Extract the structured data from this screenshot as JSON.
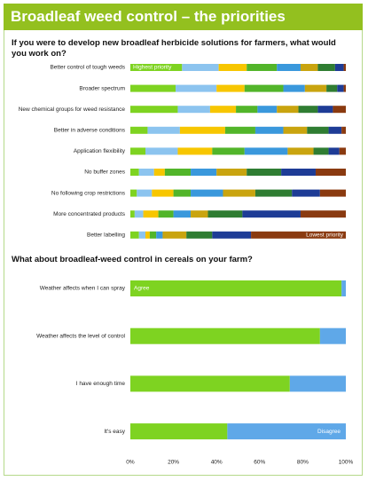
{
  "header": {
    "title": "Broadleaf weed control – the priorities"
  },
  "chart_data": [
    {
      "type": "bar",
      "orientation": "horizontal",
      "stacked": true,
      "title": "If you were to develop new broadleaf herbicide solutions for farmers, what would you work on?",
      "categories": [
        "Better control of tough weeds",
        "Broader spectrum",
        "New chemical groups for weed resistance",
        "Better in adverse conditions",
        "Application flexibility",
        "No buffer zones",
        "No following crop restrictions",
        "More concentrated products",
        "Better labelling"
      ],
      "xlim": [
        0,
        100
      ],
      "annotations": [
        "Highest priority",
        "Lowest priority"
      ],
      "series": [
        {
          "color": "#7ed321",
          "values": [
            24,
            21,
            22,
            8,
            7,
            4,
            3,
            2,
            4
          ]
        },
        {
          "color": "#8cc4ef",
          "values": [
            17,
            19,
            15,
            15,
            15,
            7,
            7,
            4,
            3
          ]
        },
        {
          "color": "#f7c600",
          "values": [
            13,
            13,
            12,
            21,
            16,
            5,
            10,
            7,
            2
          ]
        },
        {
          "color": "#52b52a",
          "values": [
            14,
            18,
            10,
            14,
            15,
            12,
            8,
            7,
            3
          ]
        },
        {
          "color": "#3a98dc",
          "values": [
            11,
            10,
            9,
            13,
            20,
            12,
            15,
            8,
            3
          ]
        },
        {
          "color": "#c9a40f",
          "values": [
            8,
            10,
            10,
            11,
            12,
            14,
            15,
            8,
            11
          ]
        },
        {
          "color": "#2f7d32",
          "values": [
            8,
            5,
            9,
            10,
            7,
            16,
            17,
            16,
            12
          ]
        },
        {
          "color": "#1e3c96",
          "values": [
            4,
            3,
            7,
            6,
            5,
            16,
            13,
            27,
            18
          ]
        },
        {
          "color": "#8a3a10",
          "values": [
            1,
            1,
            6,
            2,
            3,
            14,
            12,
            21,
            44
          ]
        }
      ]
    },
    {
      "type": "bar",
      "orientation": "horizontal",
      "stacked": true,
      "title": "What about broadleaf-weed control in cereals on your farm?",
      "categories": [
        "Weather affects when I can spray",
        "Weather affects the level of control",
        "I have enough time",
        "It's easy"
      ],
      "xlim": [
        0,
        100
      ],
      "xticks": [
        {
          "value": 0,
          "label": "0%"
        },
        {
          "value": 20,
          "label": "20%"
        },
        {
          "value": 40,
          "label": "40%"
        },
        {
          "value": 60,
          "label": "60%"
        },
        {
          "value": 80,
          "label": "80%"
        },
        {
          "value": 100,
          "label": "100%"
        }
      ],
      "series": [
        {
          "name": "Agree",
          "color": "#7ed321",
          "values": [
            98,
            88,
            74,
            45
          ]
        },
        {
          "name": "Disagree",
          "color": "#5fa8e8",
          "values": [
            2,
            12,
            26,
            55
          ]
        }
      ]
    }
  ]
}
